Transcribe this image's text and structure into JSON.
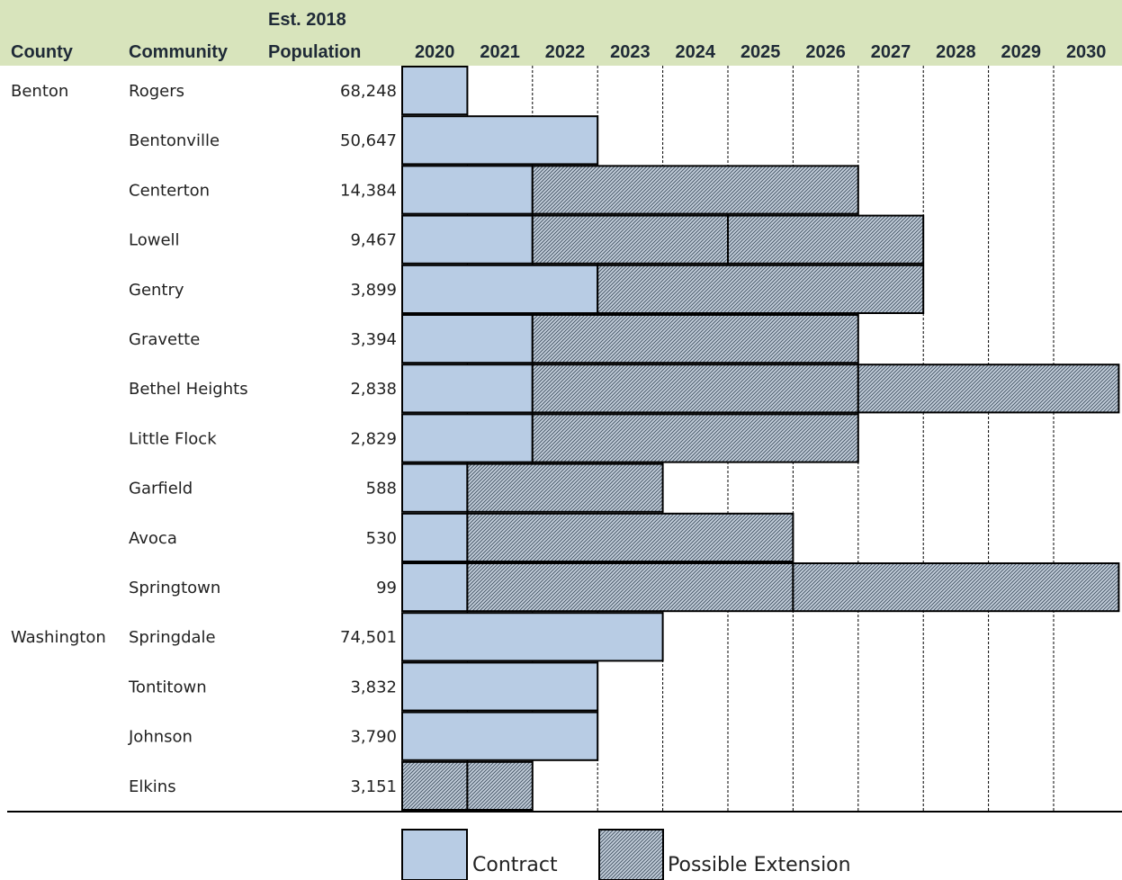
{
  "table": {
    "header": {
      "county": "County",
      "community": "Community",
      "population_line1": "Est. 2018",
      "population_line2": "Population"
    },
    "header_color": "#d8e4bc"
  },
  "legend": {
    "contract": "Contract",
    "extension": "Possible Extension"
  },
  "chart_data": {
    "type": "table",
    "years": [
      "2020",
      "2021",
      "2022",
      "2023",
      "2024",
      "2025",
      "2026",
      "2027",
      "2028",
      "2029",
      "2030"
    ],
    "colors": {
      "contract": "#b8cce4",
      "extension_fill": "#c5d0dc",
      "extension_hatch": "#4a5a6a",
      "border": "#000000"
    },
    "rows": [
      {
        "county": "Benton",
        "community": "Rogers",
        "population": "68,248",
        "segments": [
          {
            "kind": "contract",
            "start": 2020,
            "end": 2021
          }
        ]
      },
      {
        "county": "",
        "community": "Bentonville",
        "population": "50,647",
        "segments": [
          {
            "kind": "contract",
            "start": 2020,
            "end": 2023
          }
        ]
      },
      {
        "county": "",
        "community": "Centerton",
        "population": "14,384",
        "segments": [
          {
            "kind": "contract",
            "start": 2020,
            "end": 2022
          },
          {
            "kind": "extension",
            "start": 2022,
            "end": 2027
          }
        ]
      },
      {
        "county": "",
        "community": "Lowell",
        "population": "9,467",
        "segments": [
          {
            "kind": "contract",
            "start": 2020,
            "end": 2022
          },
          {
            "kind": "extension",
            "start": 2022,
            "end": 2025
          },
          {
            "kind": "extension",
            "start": 2025,
            "end": 2028
          }
        ]
      },
      {
        "county": "",
        "community": "Gentry",
        "population": "3,899",
        "segments": [
          {
            "kind": "contract",
            "start": 2020,
            "end": 2023
          },
          {
            "kind": "extension",
            "start": 2023,
            "end": 2028
          }
        ]
      },
      {
        "county": "",
        "community": "Gravette",
        "population": "3,394",
        "segments": [
          {
            "kind": "contract",
            "start": 2020,
            "end": 2022
          },
          {
            "kind": "extension",
            "start": 2022,
            "end": 2027
          }
        ]
      },
      {
        "county": "",
        "community": "Bethel Heights",
        "population": "2,838",
        "segments": [
          {
            "kind": "contract",
            "start": 2020,
            "end": 2022
          },
          {
            "kind": "extension",
            "start": 2022,
            "end": 2027
          },
          {
            "kind": "extension",
            "start": 2027,
            "end": 2031
          }
        ]
      },
      {
        "county": "",
        "community": "Little Flock",
        "population": "2,829",
        "segments": [
          {
            "kind": "contract",
            "start": 2020,
            "end": 2022
          },
          {
            "kind": "extension",
            "start": 2022,
            "end": 2027
          }
        ]
      },
      {
        "county": "",
        "community": "Garfield",
        "population": "588",
        "segments": [
          {
            "kind": "contract",
            "start": 2020,
            "end": 2021
          },
          {
            "kind": "extension",
            "start": 2021,
            "end": 2024
          }
        ]
      },
      {
        "county": "",
        "community": "Avoca",
        "population": "530",
        "segments": [
          {
            "kind": "contract",
            "start": 2020,
            "end": 2021
          },
          {
            "kind": "extension",
            "start": 2021,
            "end": 2026
          }
        ]
      },
      {
        "county": "",
        "community": "Springtown",
        "population": "99",
        "segments": [
          {
            "kind": "contract",
            "start": 2020,
            "end": 2021
          },
          {
            "kind": "extension",
            "start": 2021,
            "end": 2026
          },
          {
            "kind": "extension",
            "start": 2026,
            "end": 2031
          }
        ]
      },
      {
        "county": "Washington",
        "community": "Springdale",
        "population": "74,501",
        "segments": [
          {
            "kind": "contract",
            "start": 2020,
            "end": 2024
          }
        ]
      },
      {
        "county": "",
        "community": "Tontitown",
        "population": "3,832",
        "segments": [
          {
            "kind": "contract",
            "start": 2020,
            "end": 2023
          }
        ]
      },
      {
        "county": "",
        "community": "Johnson",
        "population": "3,790",
        "segments": [
          {
            "kind": "contract",
            "start": 2020,
            "end": 2023
          }
        ]
      },
      {
        "county": "",
        "community": "Elkins",
        "population": "3,151",
        "segments": [
          {
            "kind": "extension",
            "start": 2020,
            "end": 2021
          },
          {
            "kind": "extension",
            "start": 2021,
            "end": 2022
          }
        ]
      }
    ]
  }
}
